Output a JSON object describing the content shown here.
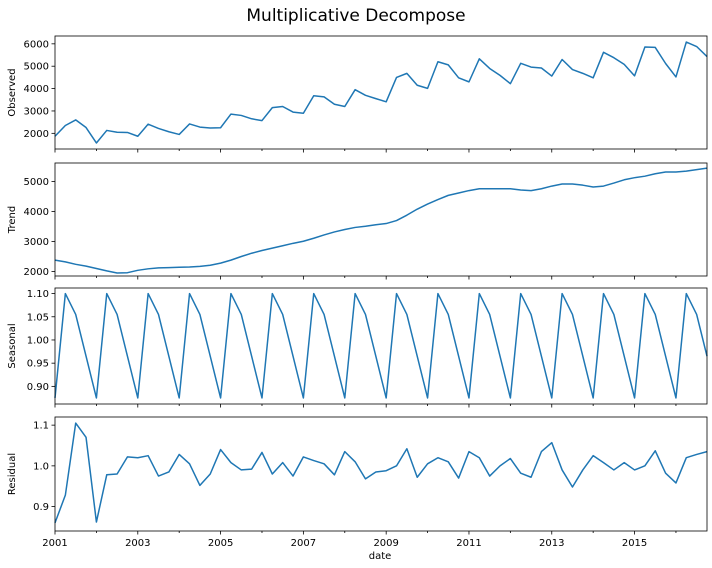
{
  "title": "Multiplicative Decompose",
  "chart_data": {
    "type": "line",
    "title": "Multiplicative Decompose",
    "xlabel": "date",
    "x_start": "2001-01",
    "x_frequency": "quarterly",
    "x_ticks": [
      "2001",
      "2003",
      "2005",
      "2007",
      "2009",
      "2011",
      "2013",
      "2015"
    ],
    "xlim": [
      "2001-01",
      "2016-10"
    ],
    "line_color": "#1f77b4",
    "grid": false,
    "panels": [
      {
        "name": "observed",
        "ylabel": "Observed",
        "ylim": [
          1300,
          6350
        ],
        "yticks": [
          "2000",
          "3000",
          "4000",
          "5000",
          "6000"
        ],
        "values": [
          1870,
          2350,
          2600,
          2260,
          1570,
          2130,
          2050,
          2040,
          1870,
          2410,
          2220,
          2070,
          1950,
          2420,
          2280,
          2240,
          2250,
          2860,
          2800,
          2650,
          2570,
          3150,
          3200,
          2950,
          2900,
          3680,
          3630,
          3300,
          3200,
          3950,
          3700,
          3550,
          3410,
          4500,
          4680,
          4150,
          4010,
          5200,
          5060,
          4480,
          4300,
          5330,
          4900,
          4590,
          4220,
          5130,
          4960,
          4920,
          4560,
          5300,
          4850,
          4680,
          4480,
          5620,
          5380,
          5080,
          4570,
          5860,
          5840,
          5120,
          4520,
          6080,
          5880,
          5430
        ]
      },
      {
        "name": "trend",
        "ylabel": "Trend",
        "ylim": [
          1850,
          5620
        ],
        "yticks": [
          "2000",
          "3000",
          "4000",
          "5000"
        ],
        "values": [
          2380,
          2320,
          2240,
          2180,
          2100,
          2020,
          1950,
          1960,
          2040,
          2090,
          2120,
          2130,
          2140,
          2150,
          2170,
          2210,
          2280,
          2380,
          2500,
          2610,
          2700,
          2780,
          2860,
          2940,
          3010,
          3110,
          3220,
          3320,
          3400,
          3470,
          3510,
          3560,
          3600,
          3700,
          3880,
          4080,
          4250,
          4400,
          4540,
          4620,
          4700,
          4760,
          4760,
          4760,
          4760,
          4720,
          4700,
          4760,
          4850,
          4920,
          4920,
          4880,
          4820,
          4850,
          4950,
          5060,
          5130,
          5180,
          5260,
          5320,
          5320,
          5350,
          5400,
          5450
        ]
      },
      {
        "name": "seasonal",
        "ylabel": "Seasonal",
        "ylim": [
          0.862,
          1.112
        ],
        "yticks": [
          "0.90",
          "0.95",
          "1.00",
          "1.05",
          "1.10"
        ],
        "values": [
          0.875,
          1.1,
          1.055,
          0.965,
          0.875,
          1.1,
          1.055,
          0.965,
          0.875,
          1.1,
          1.055,
          0.965,
          0.875,
          1.1,
          1.055,
          0.965,
          0.875,
          1.1,
          1.055,
          0.965,
          0.875,
          1.1,
          1.055,
          0.965,
          0.875,
          1.1,
          1.055,
          0.965,
          0.875,
          1.1,
          1.055,
          0.965,
          0.875,
          1.1,
          1.055,
          0.965,
          0.875,
          1.1,
          1.055,
          0.965,
          0.875,
          1.1,
          1.055,
          0.965,
          0.875,
          1.1,
          1.055,
          0.965,
          0.875,
          1.1,
          1.055,
          0.965,
          0.875,
          1.1,
          1.055,
          0.965,
          0.875,
          1.1,
          1.055,
          0.965,
          0.875,
          1.1,
          1.055,
          0.965
        ]
      },
      {
        "name": "residual",
        "ylabel": "Residual",
        "ylim": [
          0.84,
          1.12
        ],
        "yticks": [
          "0.9",
          "1.0",
          "1.1"
        ],
        "values": [
          0.86,
          0.928,
          1.105,
          1.07,
          0.862,
          0.978,
          0.98,
          1.022,
          1.02,
          1.025,
          0.975,
          0.985,
          1.028,
          1.005,
          0.952,
          0.98,
          1.04,
          1.008,
          0.99,
          0.992,
          1.033,
          0.98,
          1.008,
          0.975,
          1.022,
          1.013,
          1.005,
          0.978,
          1.035,
          1.01,
          0.968,
          0.985,
          0.988,
          1.0,
          1.042,
          0.972,
          1.005,
          1.02,
          1.01,
          0.97,
          1.035,
          1.02,
          0.975,
          1.0,
          1.018,
          0.982,
          0.972,
          1.035,
          1.057,
          0.99,
          0.948,
          0.99,
          1.025,
          1.008,
          0.99,
          1.008,
          0.99,
          1.0,
          1.037,
          0.982,
          0.958,
          1.02,
          1.028,
          1.035
        ]
      }
    ]
  }
}
